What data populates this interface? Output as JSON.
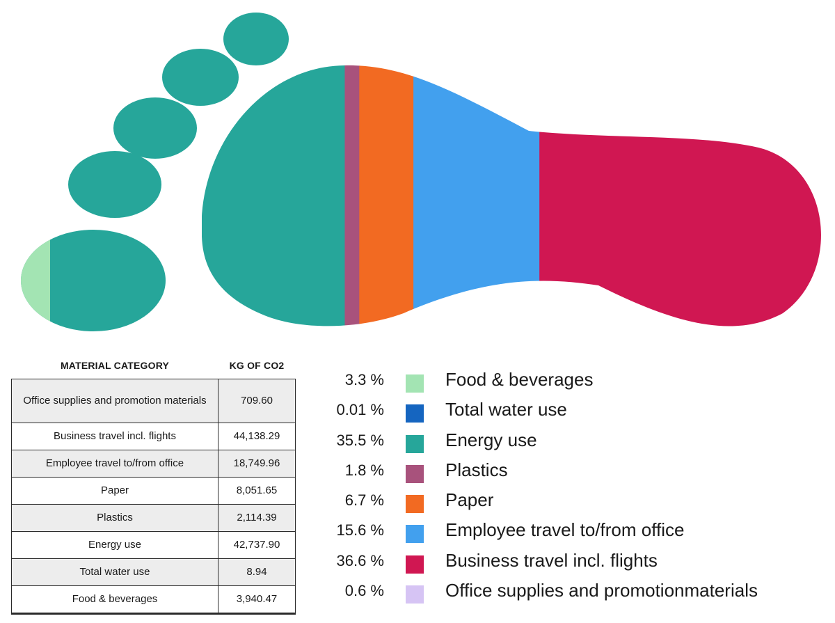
{
  "chart_data": {
    "type": "bar",
    "title": "",
    "legend_position": "bottom-right",
    "series": [
      {
        "name": "Food & beverages",
        "percent": 3.3,
        "color": "#a3e4b3"
      },
      {
        "name": "Total water use",
        "percent": 0.01,
        "color": "#1565c0"
      },
      {
        "name": "Energy use",
        "percent": 35.5,
        "color": "#26a69a"
      },
      {
        "name": "Plastics",
        "percent": 1.8,
        "color": "#a8527c"
      },
      {
        "name": "Paper",
        "percent": 6.7,
        "color": "#f26a22"
      },
      {
        "name": "Employee travel to/from office",
        "percent": 15.6,
        "color": "#42a0ee"
      },
      {
        "name": "Business travel incl. flights",
        "percent": 36.6,
        "color": "#d01752"
      },
      {
        "name": "Office supplies and promotionmaterials",
        "percent": 0.6,
        "color": "#d6c4f4"
      }
    ],
    "legend": [
      {
        "percent_label": "3.3 %",
        "label": "Food & beverages",
        "color": "#a3e4b3"
      },
      {
        "percent_label": "0.01 %",
        "label": "Total water use",
        "color": "#1565c0"
      },
      {
        "percent_label": "35.5 %",
        "label": "Energy use",
        "color": "#26a69a"
      },
      {
        "percent_label": "1.8 %",
        "label": "Plastics",
        "color": "#a8527c"
      },
      {
        "percent_label": "6.7 %",
        "label": "Paper",
        "color": "#f26a22"
      },
      {
        "percent_label": "15.6 %",
        "label": "Employee travel to/from office",
        "color": "#42a0ee"
      },
      {
        "percent_label": "36.6 %",
        "label": "Business travel incl. flights",
        "color": "#d01752"
      },
      {
        "percent_label": "0.6 %",
        "label": "Office supplies and promotionmaterials",
        "color": "#d6c4f4"
      }
    ],
    "table": {
      "headers": [
        "MATERIAL CATEGORY",
        "KG OF CO2"
      ],
      "rows": [
        [
          "Office supplies and promotion materials",
          "709.60"
        ],
        [
          "Business travel incl. flights",
          "44,138.29"
        ],
        [
          "Employee travel to/from office",
          "18,749.96"
        ],
        [
          "Paper",
          "8,051.65"
        ],
        [
          "Plastics",
          "2,114.39"
        ],
        [
          "Energy use",
          "42,737.90"
        ],
        [
          "Total water use",
          "8.94"
        ],
        [
          "Food & beverages",
          "3,940.47"
        ]
      ]
    }
  }
}
